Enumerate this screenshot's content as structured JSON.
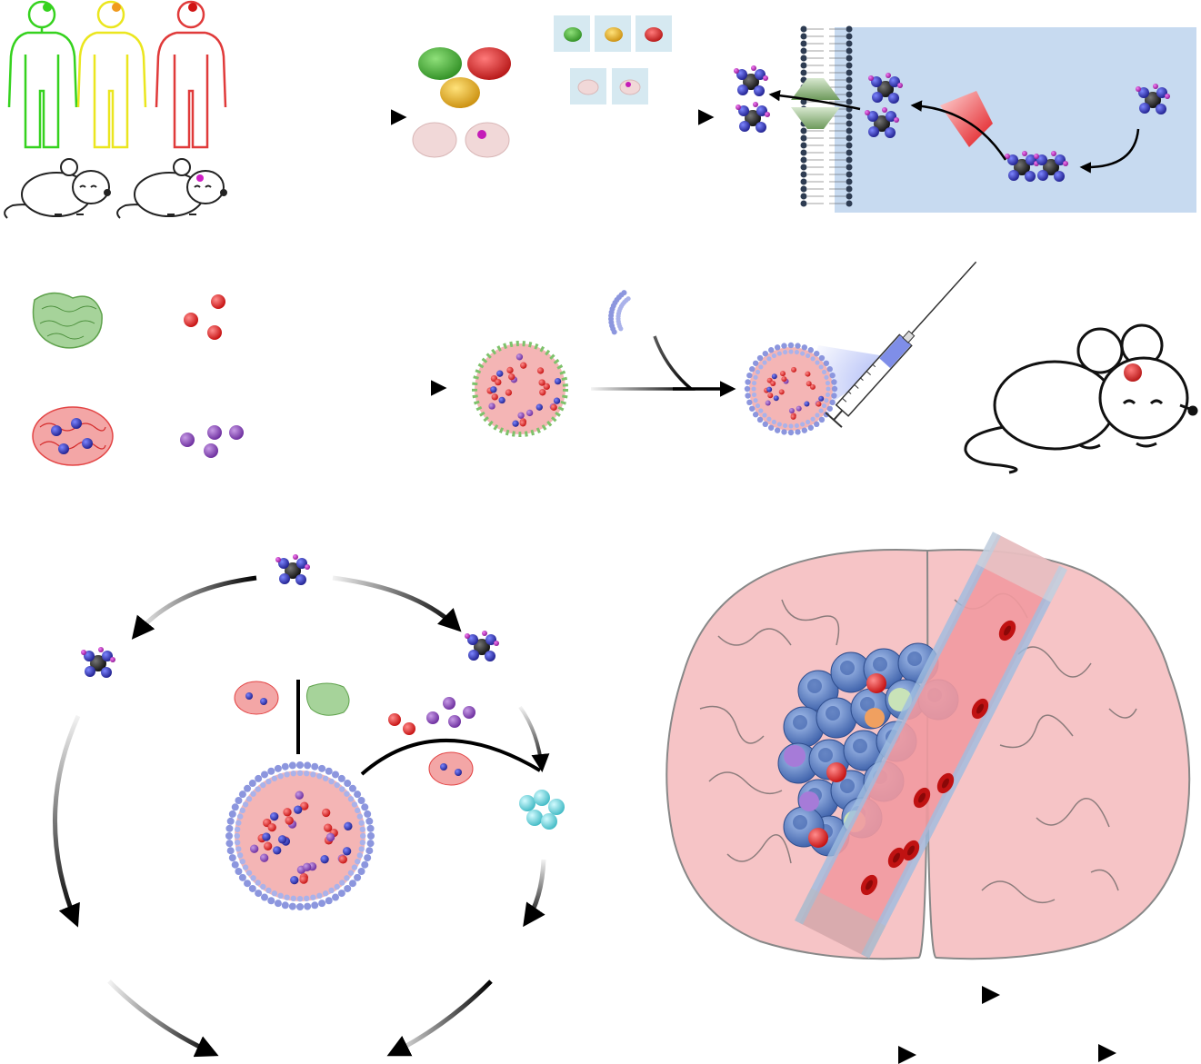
{
  "figure": {
    "panels": [
      {
        "id": "cohorts",
        "subjects": [
          "human-green",
          "human-yellow",
          "human-red",
          "mouse-plain",
          "mouse-tumor"
        ]
      },
      {
        "id": "tumor-samples",
        "items": [
          "green-tumor",
          "red-tumor",
          "yellow-tumor",
          "brain-slice",
          "brain-slice-tumor"
        ]
      },
      {
        "id": "membrane-transport",
        "elements": [
          "phospholipid-bilayer",
          "membrane-transporter",
          "enzyme",
          "small-molecules"
        ]
      },
      {
        "id": "nanoparticle-assembly",
        "elements": [
          "protein-green",
          "red-spheres",
          "protein-red-loaded",
          "purple-spheres",
          "core-nanoparticle",
          "lipid-bilayer-fragment",
          "liposome",
          "syringe",
          "mouse-with-tumor"
        ]
      },
      {
        "id": "mechanism-cycle",
        "elements": [
          "central-molecule",
          "left-molecule",
          "right-molecule",
          "liposome",
          "cyan-cluster"
        ]
      },
      {
        "id": "brain-delivery",
        "elements": [
          "brain",
          "blood-vessel",
          "red-blood-cells",
          "tumor-cells"
        ]
      }
    ]
  },
  "palette": {
    "human_green": "#35d21e",
    "human_yellow": "#ebe61e",
    "human_red": "#e03a3a",
    "panel_blue": "#c7daf0",
    "lipid_blue": "#8c96de",
    "brain_pink": "#f6c4c6",
    "vessel_pink": "#f29aa0",
    "tumor_blue": "#4f78c0",
    "cyan": "#6fd9df",
    "molecule_dark": "#1d1d1d",
    "molecule_blue": "#2e2fb3",
    "molecule_magenta": "#c02ac2"
  }
}
